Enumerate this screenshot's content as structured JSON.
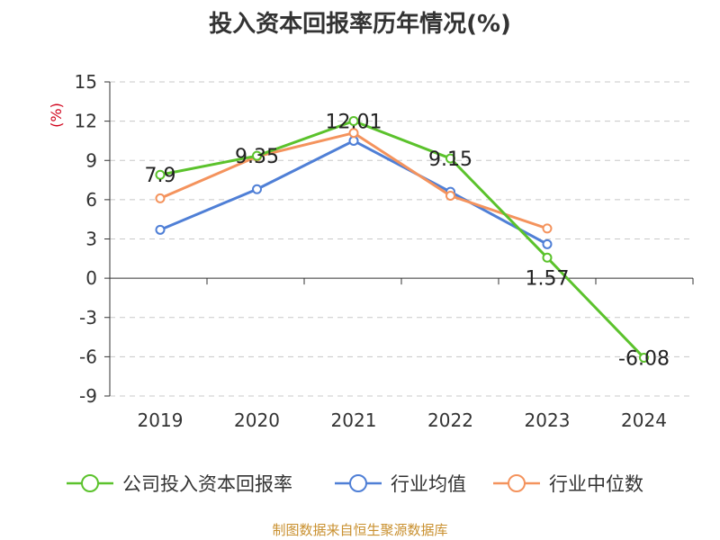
{
  "title": "投入资本回报率历年情况(%)",
  "source": "制图数据来自恒生聚源数据库",
  "chart_data": {
    "type": "line",
    "title": "投入资本回报率历年情况(%)",
    "ylabel": "(%)",
    "ylim": [
      -9,
      15
    ],
    "yticks": [
      15,
      12,
      9,
      6,
      3,
      0,
      -3,
      -6,
      -9
    ],
    "categories": [
      "2019",
      "2020",
      "2021",
      "2022",
      "2023",
      "2024"
    ],
    "grid": true,
    "legend_position": "bottom",
    "series": [
      {
        "name": "公司投入资本回报率",
        "color": "#5bc22c",
        "values": [
          7.9,
          9.35,
          12.01,
          9.15,
          1.57,
          -6.08
        ],
        "labels": [
          "7.9",
          "9.35",
          "12.01",
          "9.15",
          "1.57",
          "-6.08"
        ]
      },
      {
        "name": "行业均值",
        "color": "#4f7fd6",
        "values": [
          3.7,
          6.8,
          10.5,
          6.6,
          2.6,
          null
        ]
      },
      {
        "name": "行业中位数",
        "color": "#f4935d",
        "values": [
          6.1,
          9.3,
          11.1,
          6.3,
          3.8,
          null
        ]
      }
    ]
  }
}
